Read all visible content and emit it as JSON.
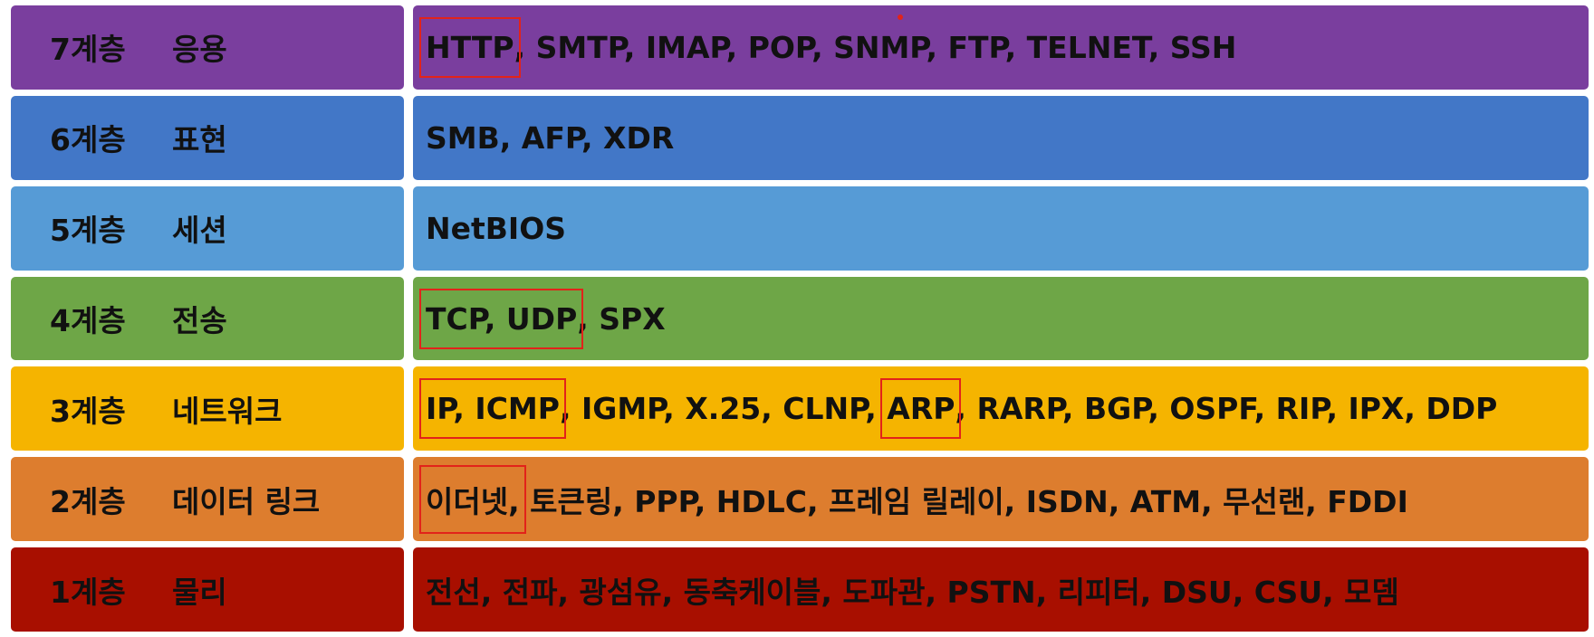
{
  "colors": {
    "layer7": "#7a3e9e",
    "layer6": "#4277c7",
    "layer5": "#569bd6",
    "layer4": "#6ea647",
    "layer3": "#f5b400",
    "layer2": "#dd7d2e",
    "layer1": "#a80f00",
    "highlight_border": "#e2231a"
  },
  "layers": [
    {
      "num": "7계층",
      "name": "응용",
      "color": "#7a3e9e",
      "highlighted": "HTTP",
      "rest": ", SMTP, IMAP, POP, SNMP, FTP, TELNET, SSH"
    },
    {
      "num": "6계층",
      "name": "표현",
      "color": "#4277c7",
      "protocols": "SMB, AFP, XDR"
    },
    {
      "num": "5계층",
      "name": "세션",
      "color": "#569bd6",
      "protocols": "NetBIOS"
    },
    {
      "num": "4계층",
      "name": "전송",
      "color": "#6ea647",
      "highlighted": "TCP, UDP",
      "rest": ", SPX"
    },
    {
      "num": "3계층",
      "name": "네트워크",
      "color": "#f5b400",
      "highlighted_a": "IP, ICMP",
      "middle": ", IGMP, X.25, CLNP, ",
      "highlighted_b": "ARP",
      "rest": ", RARP, BGP, OSPF, RIP, IPX, DDP"
    },
    {
      "num": "2계층",
      "name": "데이터 링크",
      "color": "#dd7d2e",
      "highlighted": "이더넷,",
      "rest": " 토큰링, PPP, HDLC, 프레임 릴레이, ISDN, ATM, 무선랜, FDDI"
    },
    {
      "num": "1계층",
      "name": "물리",
      "color": "#a80f00",
      "protocols": "전선, 전파, 광섬유, 동축케이블, 도파관, PSTN, 리피터, DSU, CSU, 모뎀"
    }
  ]
}
